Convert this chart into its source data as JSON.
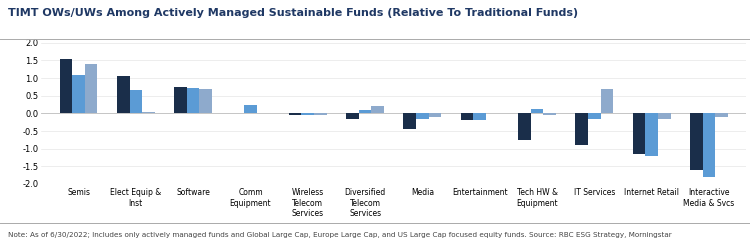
{
  "title": "TIMT OWs/UWs Among Actively Managed Sustainable Funds (Relative To Traditional Funds)",
  "title_color": "#1f3864",
  "categories": [
    "Semis",
    "Elect Equip &\nInst",
    "Software",
    "Comm\nEquipment",
    "Wireless\nTelecom\nServices",
    "Diversified\nTelecom\nServices",
    "Media",
    "Entertainment",
    "Tech HW &\nEquipment",
    "IT Services",
    "Internet Retail",
    "Interactive\nMedia & Svcs"
  ],
  "global_large_cap": [
    1.55,
    1.05,
    0.75,
    0.0,
    -0.05,
    -0.15,
    -0.45,
    -0.2,
    -0.75,
    -0.9,
    -1.15,
    -1.6
  ],
  "us_large_cap": [
    1.1,
    0.65,
    0.72,
    0.25,
    -0.05,
    0.1,
    -0.15,
    -0.2,
    0.12,
    -0.15,
    -1.2,
    -1.8
  ],
  "europe_large_cap": [
    1.4,
    0.05,
    0.68,
    0.0,
    -0.05,
    0.22,
    -0.1,
    0.0,
    -0.05,
    0.7,
    -0.15,
    -0.1
  ],
  "color_global": "#1a2e4a",
  "color_us": "#5b9bd5",
  "color_europe": "#8eaacc",
  "ylim": [
    -2.0,
    2.0
  ],
  "yticks": [
    -2.0,
    -1.5,
    -1.0,
    -0.5,
    0.0,
    0.5,
    1.0,
    1.5,
    2.0
  ],
  "note": "Note: As of 6/30/2022; Includes only actively managed funds and Global Large Cap, Europe Large Cap, and US Large Cap focused equity funds. Source: RBC ESG Strategy, Morningstar"
}
